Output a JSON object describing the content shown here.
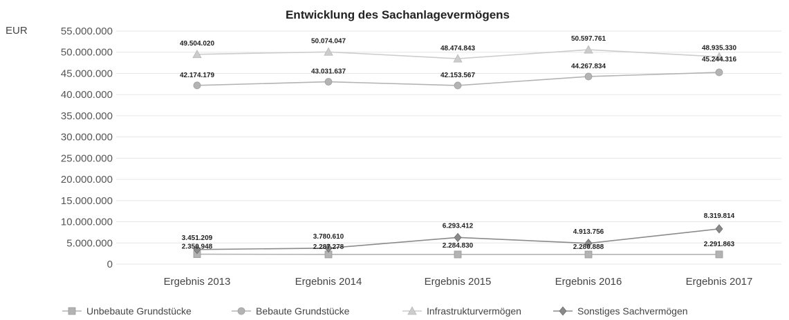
{
  "chart_data": {
    "type": "line",
    "title": "Entwicklung des Sachanlagevermögens",
    "ylabel": "EUR",
    "xlabel": "",
    "ylim": [
      0,
      55000000
    ],
    "y_ticks": [
      0,
      5000000,
      10000000,
      15000000,
      20000000,
      25000000,
      30000000,
      35000000,
      40000000,
      45000000,
      50000000,
      55000000
    ],
    "y_tick_labels": [
      "0",
      "5.000.000",
      "10.000.000",
      "15.000.000",
      "20.000.000",
      "25.000.000",
      "30.000.000",
      "35.000.000",
      "40.000.000",
      "45.000.000",
      "50.000.000",
      "55.000.000"
    ],
    "categories": [
      "Ergebnis 2013",
      "Ergebnis 2014",
      "Ergebnis 2015",
      "Ergebnis 2016",
      "Ergebnis 2017"
    ],
    "grid": true,
    "legend_position": "bottom",
    "series": [
      {
        "name": "Unbebaute Grundstücke",
        "marker": "square",
        "color": "#b3b3b3",
        "values": [
          2350948,
          2287278,
          2284830,
          2280888,
          2291863
        ],
        "labels": [
          "2.350.948",
          "2.287.278",
          "2.284.830",
          "2.280.888",
          "2.291.863"
        ]
      },
      {
        "name": "Bebaute Grundstücke",
        "marker": "circle",
        "color": "#b3b3b3",
        "values": [
          42174179,
          43031637,
          42153567,
          44267834,
          45244316
        ],
        "labels": [
          "42.174.179",
          "43.031.637",
          "42.153.567",
          "44.267.834",
          "45.244.316"
        ]
      },
      {
        "name": "Infrastrukturvermögen",
        "marker": "triangle",
        "color": "#cccccc",
        "values": [
          49504020,
          50074047,
          48474843,
          50597761,
          48935330
        ],
        "labels": [
          "49.504.020",
          "50.074.047",
          "48.474.843",
          "50.597.761",
          "48.935.330"
        ]
      },
      {
        "name": "Sonstiges Sachvermögen",
        "marker": "diamond",
        "color": "#8a8a8a",
        "values": [
          3451209,
          3780610,
          6293412,
          4913756,
          8319814
        ],
        "labels": [
          "3.451.209",
          "3.780.610",
          "6.293.412",
          "4.913.756",
          "8.319.814"
        ]
      }
    ]
  }
}
